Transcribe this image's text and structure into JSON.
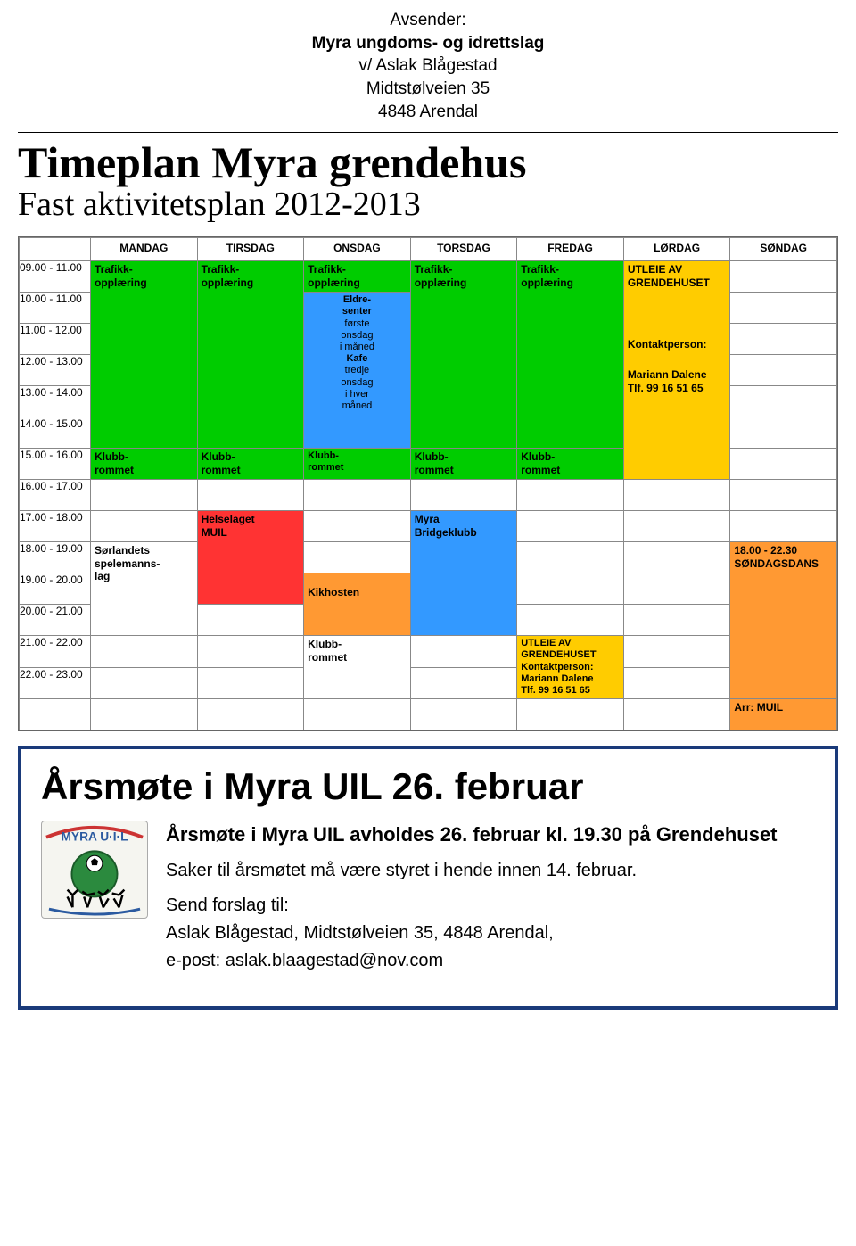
{
  "sender": {
    "label": "Avsender:",
    "org": "Myra ungdoms- og idrettslag",
    "co": "v/ Aslak Blågestad",
    "street": "Midtstølveien 35",
    "cityzip": "4848 Arendal"
  },
  "page": {
    "title": "Timeplan Myra grendehus",
    "subtitle": "Fast aktivitetsplan 2012-2013"
  },
  "schedule": {
    "days": [
      "MANDAG",
      "TIRSDAG",
      "ONSDAG",
      "TORSDAG",
      "FREDAG",
      "LØRDAG",
      "SØNDAG"
    ],
    "times": [
      "09.00 - 11.00",
      "10.00 - 11.00",
      "11.00 - 12.00",
      "12.00 - 13.00",
      "13.00 - 14.00",
      "14.00 - 15.00",
      "15.00 - 16.00",
      "16.00 - 17.00",
      "17.00 - 18.00",
      "18.00 - 19.00",
      "19.00 - 20.00",
      "20.00 - 21.00",
      "21.00 - 22.00",
      "22.00 - 23.00"
    ],
    "cells": {
      "trafikk": "Trafikk-\nopplæring",
      "klubb": "Klubb-\nrommet",
      "utleie": "UTLEIE AV\nGRENDEHUSET",
      "kontakt": "Kontaktperson:",
      "mariann": "Mariann Dalene\nTlf. 99 16 51 65",
      "mariann2": "Kontaktperson:\nMariann Dalene\nTlf. 99 16 51 65",
      "eldre": "Eldre-\nsenter",
      "eldre_sub1": "første\nonsdag\ni måned",
      "kafe": "Kafe",
      "kafe_sub": "tredje\nonsdag\ni hver\nmåned",
      "helse": "Helselaget\nMUIL",
      "sorlandet": "Sørlandets\nspelemanns-\nlag",
      "kikhosten": "Kikhosten",
      "bridge": "Myra\nBridgeklubb",
      "sondag": "18.00 - 22.30\nSØNDAGSDANS",
      "arr": "Arr: MUIL"
    },
    "colors": {
      "green": "#00cc00",
      "yellow": "#ffcc00",
      "blue": "#3399ff",
      "red": "#ff3333",
      "orange": "#ff9933",
      "border": "#888888"
    }
  },
  "notice": {
    "title": "Årsmøte i Myra UIL 26. februar",
    "heading": "Årsmøte i Myra UIL avholdes 26. februar kl. 19.30 på Grendehuset",
    "line1": "Saker til årsmøtet må være styret i hende innen 14. februar.",
    "line2": "Send forslag til:",
    "line3": "Aslak Blågestad, Midtstølveien 35, 4848 Arendal,",
    "line4": "e-post: aslak.blaagestad@nov.com",
    "logo_text": "MYRA U·I·L"
  }
}
